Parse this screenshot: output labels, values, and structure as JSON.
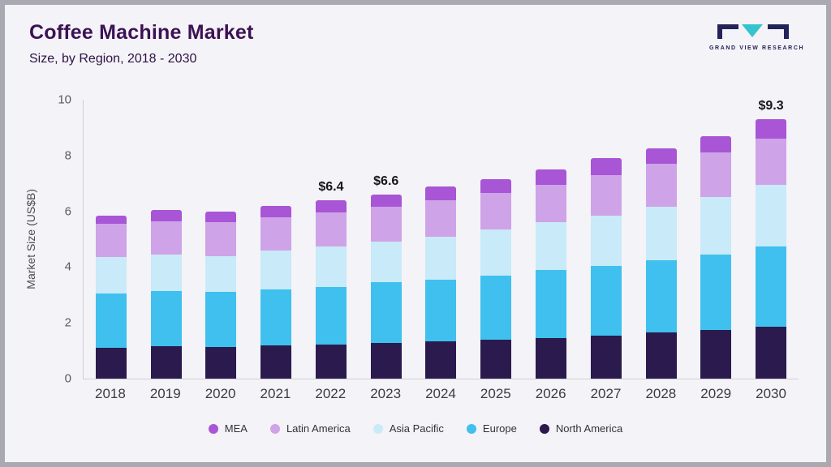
{
  "page": {
    "title": "Coffee Machine Market",
    "subtitle": "Size, by Region, 2018 - 2030"
  },
  "logo": {
    "text": "GRAND VIEW RESEARCH",
    "dark_color": "#23235a",
    "teal_color": "#35c4cf"
  },
  "chart_data": {
    "type": "bar",
    "stacked": true,
    "title": "Coffee Machine Market Size, by Region, 2018 - 2030",
    "ylabel": "Market Size (US$B)",
    "ylim": [
      0,
      10
    ],
    "yticks": [
      0,
      2,
      4,
      6,
      8,
      10
    ],
    "grid": false,
    "legend_position": "bottom",
    "categories": [
      "2018",
      "2019",
      "2020",
      "2021",
      "2022",
      "2023",
      "2024",
      "2025",
      "2026",
      "2027",
      "2028",
      "2029",
      "2030"
    ],
    "series": [
      {
        "name": "North America",
        "color": "#2b1a4e",
        "values": [
          1.1,
          1.15,
          1.12,
          1.18,
          1.22,
          1.27,
          1.33,
          1.4,
          1.45,
          1.55,
          1.65,
          1.75,
          1.85
        ]
      },
      {
        "name": "Europe",
        "color": "#3fc0ee",
        "values": [
          1.95,
          2.0,
          1.98,
          2.02,
          2.08,
          2.18,
          2.22,
          2.3,
          2.45,
          2.5,
          2.6,
          2.7,
          2.9
        ]
      },
      {
        "name": "Asia Pacific",
        "color": "#c9eaf8",
        "values": [
          1.3,
          1.3,
          1.3,
          1.4,
          1.45,
          1.45,
          1.55,
          1.65,
          1.7,
          1.8,
          1.9,
          2.05,
          2.2
        ]
      },
      {
        "name": "Latin America",
        "color": "#cfa3e8",
        "values": [
          1.2,
          1.2,
          1.2,
          1.2,
          1.2,
          1.25,
          1.3,
          1.3,
          1.35,
          1.45,
          1.55,
          1.6,
          1.65
        ]
      },
      {
        "name": "MEA",
        "color": "#a855d6",
        "values": [
          0.3,
          0.4,
          0.4,
          0.4,
          0.45,
          0.45,
          0.5,
          0.5,
          0.55,
          0.6,
          0.55,
          0.6,
          0.7
        ]
      }
    ],
    "annotations": [
      "",
      "",
      "",
      "",
      "$6.4",
      "$6.6",
      "",
      "",
      "",
      "",
      "",
      "",
      "$9.3"
    ],
    "legend": [
      {
        "name": "MEA",
        "color": "#a855d6"
      },
      {
        "name": "Latin America",
        "color": "#cfa3e8"
      },
      {
        "name": "Asia Pacific",
        "color": "#c9eaf8"
      },
      {
        "name": "Europe",
        "color": "#3fc0ee"
      },
      {
        "name": "North America",
        "color": "#2b1a4e"
      }
    ]
  }
}
